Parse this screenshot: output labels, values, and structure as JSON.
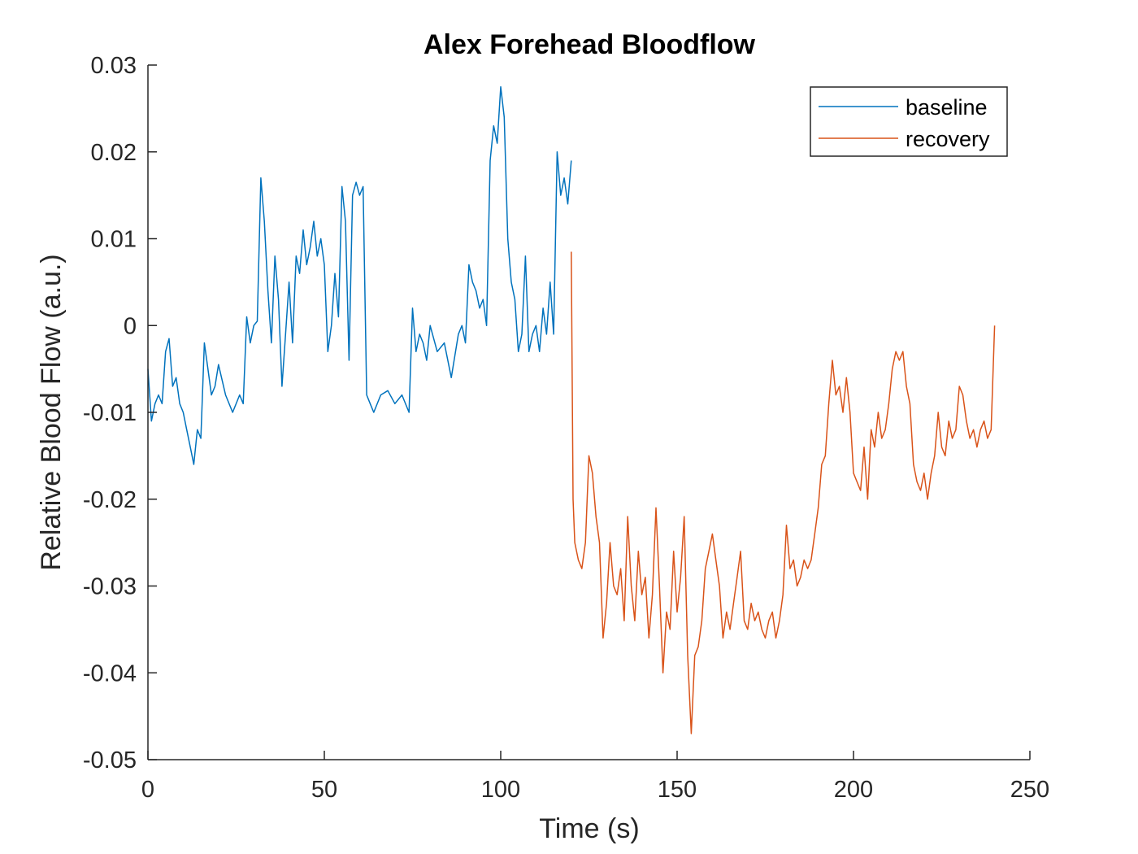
{
  "chart_data": {
    "type": "line",
    "title": "Alex Forehead Bloodflow",
    "xlabel": "Time (s)",
    "ylabel": "Relative Blood Flow (a.u.)",
    "xlim": [
      0,
      250
    ],
    "ylim": [
      -0.05,
      0.03
    ],
    "xticks": [
      0,
      50,
      100,
      150,
      200,
      250
    ],
    "xtick_labels": [
      "0",
      "50",
      "100",
      "150",
      "200",
      "250"
    ],
    "yticks": [
      0.03,
      0.02,
      0.01,
      0,
      -0.01,
      -0.02,
      -0.03,
      -0.04,
      -0.05
    ],
    "ytick_labels": [
      "0.03",
      "0.02",
      "0.01",
      "0",
      "-0.01",
      "-0.02",
      "-0.03",
      "-0.04",
      "-0.05"
    ],
    "grid": false,
    "legend_position": "top-right",
    "series": [
      {
        "name": "baseline",
        "color": "#0072BD",
        "x": [
          0,
          1,
          2,
          3,
          4,
          5,
          6,
          7,
          8,
          9,
          10,
          11,
          12,
          13,
          14,
          15,
          16,
          17,
          18,
          19,
          20,
          22,
          24,
          26,
          27,
          28,
          29,
          30,
          31,
          32,
          33,
          34,
          35,
          36,
          37,
          38,
          39,
          40,
          41,
          42,
          43,
          44,
          45,
          46,
          47,
          48,
          49,
          50,
          51,
          52,
          53,
          54,
          55,
          56,
          57,
          58,
          59,
          60,
          61,
          62,
          63,
          64,
          66,
          68,
          70,
          72,
          74,
          75,
          76,
          77,
          78,
          79,
          80,
          82,
          84,
          86,
          88,
          89,
          90,
          91,
          92,
          93,
          94,
          95,
          96,
          97,
          98,
          99,
          100,
          101,
          102,
          103,
          104,
          105,
          106,
          107,
          108,
          109,
          110,
          111,
          112,
          113,
          114,
          115,
          116,
          117,
          118,
          119,
          120
        ],
        "values": [
          -0.005,
          -0.011,
          -0.009,
          -0.008,
          -0.009,
          -0.003,
          -0.0015,
          -0.007,
          -0.006,
          -0.009,
          -0.01,
          -0.012,
          -0.014,
          -0.016,
          -0.012,
          -0.013,
          -0.002,
          -0.005,
          -0.008,
          -0.007,
          -0.0045,
          -0.008,
          -0.01,
          -0.008,
          -0.009,
          0.001,
          -0.002,
          0.0,
          0.0005,
          0.017,
          0.012,
          0.004,
          -0.002,
          0.008,
          0.003,
          -0.007,
          -0.001,
          0.005,
          -0.002,
          0.008,
          0.006,
          0.011,
          0.007,
          0.009,
          0.012,
          0.008,
          0.01,
          0.007,
          -0.003,
          0.0,
          0.006,
          0.001,
          0.016,
          0.012,
          -0.004,
          0.015,
          0.0165,
          0.015,
          0.016,
          -0.008,
          -0.009,
          -0.01,
          -0.008,
          -0.0075,
          -0.009,
          -0.008,
          -0.01,
          0.002,
          -0.003,
          -0.001,
          -0.002,
          -0.004,
          0.0,
          -0.003,
          -0.002,
          -0.006,
          -0.001,
          0.0,
          -0.002,
          0.007,
          0.005,
          0.004,
          0.002,
          0.003,
          0.0,
          0.019,
          0.023,
          0.021,
          0.0275,
          0.024,
          0.01,
          0.005,
          0.003,
          -0.003,
          -0.001,
          0.008,
          -0.003,
          -0.001,
          0.0,
          -0.003,
          0.002,
          -0.001,
          0.005,
          -0.001,
          0.02,
          0.015,
          0.017,
          0.014,
          0.019
        ]
      },
      {
        "name": "recovery",
        "color": "#D95319",
        "x": [
          120,
          120.5,
          121,
          122,
          123,
          124,
          125,
          126,
          127,
          128,
          129,
          130,
          131,
          132,
          133,
          134,
          135,
          136,
          137,
          138,
          139,
          140,
          141,
          142,
          143,
          144,
          145,
          146,
          147,
          148,
          149,
          150,
          151,
          152,
          153,
          154,
          155,
          156,
          157,
          158,
          159,
          160,
          161,
          162,
          163,
          164,
          165,
          166,
          167,
          168,
          169,
          170,
          171,
          172,
          173,
          174,
          175,
          176,
          177,
          178,
          179,
          180,
          181,
          182,
          183,
          184,
          185,
          186,
          187,
          188,
          189,
          190,
          191,
          192,
          193,
          194,
          195,
          196,
          197,
          198,
          199,
          200,
          201,
          202,
          203,
          204,
          205,
          206,
          207,
          208,
          209,
          210,
          211,
          212,
          213,
          214,
          215,
          216,
          217,
          218,
          219,
          220,
          221,
          222,
          223,
          224,
          225,
          226,
          227,
          228,
          229,
          230,
          231,
          232,
          233,
          234,
          235,
          236,
          237,
          238,
          239,
          240
        ],
        "values": [
          0.0085,
          -0.02,
          -0.025,
          -0.027,
          -0.028,
          -0.025,
          -0.015,
          -0.017,
          -0.022,
          -0.025,
          -0.036,
          -0.032,
          -0.025,
          -0.03,
          -0.031,
          -0.028,
          -0.034,
          -0.022,
          -0.03,
          -0.034,
          -0.026,
          -0.031,
          -0.029,
          -0.036,
          -0.031,
          -0.021,
          -0.03,
          -0.04,
          -0.033,
          -0.035,
          -0.026,
          -0.033,
          -0.029,
          -0.022,
          -0.038,
          -0.047,
          -0.038,
          -0.037,
          -0.034,
          -0.028,
          -0.026,
          -0.024,
          -0.027,
          -0.03,
          -0.036,
          -0.033,
          -0.035,
          -0.032,
          -0.029,
          -0.026,
          -0.034,
          -0.035,
          -0.032,
          -0.034,
          -0.033,
          -0.035,
          -0.036,
          -0.034,
          -0.033,
          -0.036,
          -0.034,
          -0.031,
          -0.023,
          -0.028,
          -0.027,
          -0.03,
          -0.029,
          -0.027,
          -0.028,
          -0.027,
          -0.024,
          -0.021,
          -0.016,
          -0.015,
          -0.009,
          -0.004,
          -0.008,
          -0.007,
          -0.01,
          -0.006,
          -0.01,
          -0.017,
          -0.018,
          -0.019,
          -0.014,
          -0.02,
          -0.012,
          -0.014,
          -0.01,
          -0.013,
          -0.012,
          -0.009,
          -0.005,
          -0.003,
          -0.004,
          -0.003,
          -0.007,
          -0.009,
          -0.016,
          -0.018,
          -0.019,
          -0.017,
          -0.02,
          -0.017,
          -0.015,
          -0.01,
          -0.014,
          -0.015,
          -0.011,
          -0.013,
          -0.012,
          -0.007,
          -0.008,
          -0.011,
          -0.013,
          -0.012,
          -0.014,
          -0.012,
          -0.011,
          -0.013,
          -0.012,
          0.0
        ]
      }
    ]
  }
}
